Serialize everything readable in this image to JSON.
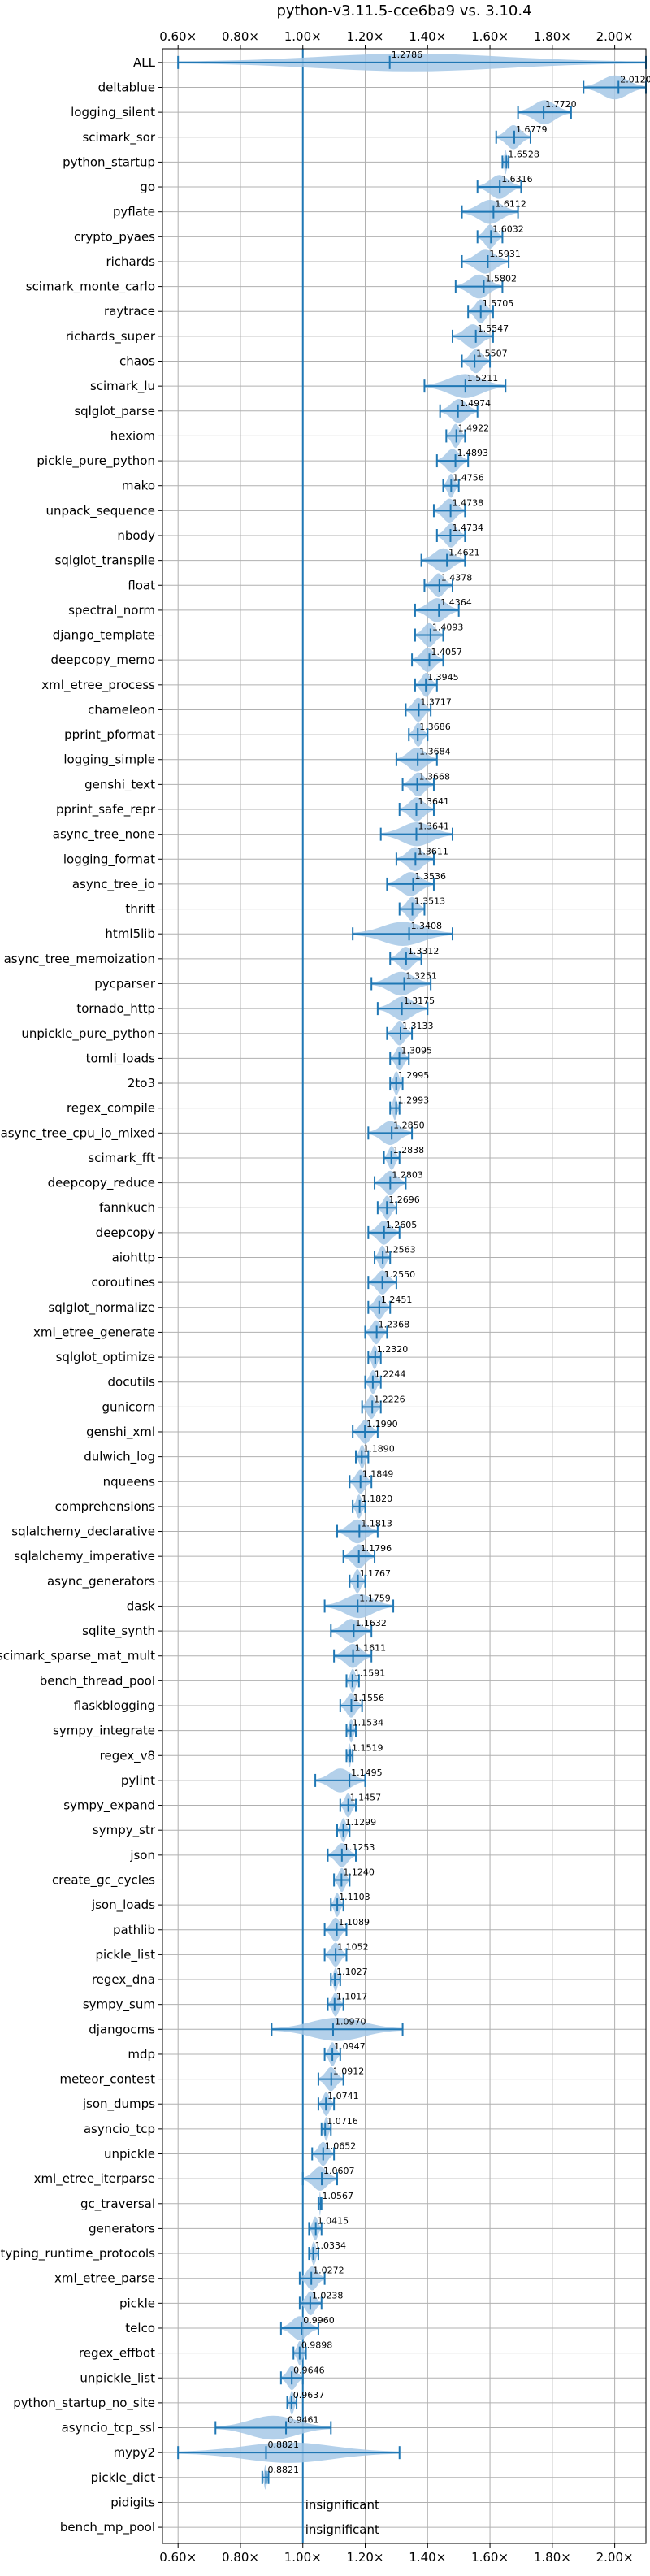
{
  "chart_data": {
    "type": "violin",
    "title": "python-v3.11.5-cce6ba9 vs. 3.10.4",
    "xlabel": "",
    "ylabel": "",
    "xlim": [
      0.55,
      2.1
    ],
    "xticks": [
      0.6,
      0.8,
      1.0,
      1.2,
      1.4,
      1.6,
      1.8,
      2.0
    ],
    "xtick_labels": [
      "0.60×",
      "0.80×",
      "1.00×",
      "1.20×",
      "1.40×",
      "1.60×",
      "1.80×",
      "2.00×"
    ],
    "reference_line": 1.0,
    "grid": true,
    "color": "#1f77b4",
    "fill_color": "#a6c8e6",
    "benchmarks": [
      {
        "name": "ALL",
        "value": 1.2786,
        "label": "1.2786",
        "min": 0.6,
        "max": 2.12
      },
      {
        "name": "deltablue",
        "value": 2.012,
        "label": "2.0120",
        "min": 1.9,
        "max": 2.1
      },
      {
        "name": "logging_silent",
        "value": 1.772,
        "label": "1.7720",
        "min": 1.69,
        "max": 1.86
      },
      {
        "name": "scimark_sor",
        "value": 1.6779,
        "label": "1.6779",
        "min": 1.62,
        "max": 1.73
      },
      {
        "name": "python_startup",
        "value": 1.6528,
        "label": "1.6528",
        "min": 1.64,
        "max": 1.66
      },
      {
        "name": "go",
        "value": 1.6316,
        "label": "1.6316",
        "min": 1.56,
        "max": 1.7
      },
      {
        "name": "pyflate",
        "value": 1.6112,
        "label": "1.6112",
        "min": 1.51,
        "max": 1.69
      },
      {
        "name": "crypto_pyaes",
        "value": 1.6032,
        "label": "1.6032",
        "min": 1.56,
        "max": 1.64
      },
      {
        "name": "richards",
        "value": 1.5931,
        "label": "1.5931",
        "min": 1.51,
        "max": 1.66
      },
      {
        "name": "scimark_monte_carlo",
        "value": 1.5802,
        "label": "1.5802",
        "min": 1.49,
        "max": 1.64
      },
      {
        "name": "raytrace",
        "value": 1.5705,
        "label": "1.5705",
        "min": 1.53,
        "max": 1.61
      },
      {
        "name": "richards_super",
        "value": 1.5547,
        "label": "1.5547",
        "min": 1.48,
        "max": 1.61
      },
      {
        "name": "chaos",
        "value": 1.5507,
        "label": "1.5507",
        "min": 1.51,
        "max": 1.6
      },
      {
        "name": "scimark_lu",
        "value": 1.5211,
        "label": "1.5211",
        "min": 1.39,
        "max": 1.65
      },
      {
        "name": "sqlglot_parse",
        "value": 1.4974,
        "label": "1.4974",
        "min": 1.44,
        "max": 1.56
      },
      {
        "name": "hexiom",
        "value": 1.4922,
        "label": "1.4922",
        "min": 1.46,
        "max": 1.52
      },
      {
        "name": "pickle_pure_python",
        "value": 1.4893,
        "label": "1.4893",
        "min": 1.43,
        "max": 1.53
      },
      {
        "name": "mako",
        "value": 1.4756,
        "label": "1.4756",
        "min": 1.45,
        "max": 1.5
      },
      {
        "name": "unpack_sequence",
        "value": 1.4738,
        "label": "1.4738",
        "min": 1.42,
        "max": 1.52
      },
      {
        "name": "nbody",
        "value": 1.4734,
        "label": "1.4734",
        "min": 1.43,
        "max": 1.52
      },
      {
        "name": "sqlglot_transpile",
        "value": 1.4621,
        "label": "1.4621",
        "min": 1.38,
        "max": 1.52
      },
      {
        "name": "float",
        "value": 1.4378,
        "label": "1.4378",
        "min": 1.39,
        "max": 1.48
      },
      {
        "name": "spectral_norm",
        "value": 1.4364,
        "label": "1.4364",
        "min": 1.36,
        "max": 1.5
      },
      {
        "name": "django_template",
        "value": 1.4093,
        "label": "1.4093",
        "min": 1.36,
        "max": 1.45
      },
      {
        "name": "deepcopy_memo",
        "value": 1.4057,
        "label": "1.4057",
        "min": 1.35,
        "max": 1.45
      },
      {
        "name": "xml_etree_process",
        "value": 1.3945,
        "label": "1.3945",
        "min": 1.36,
        "max": 1.43
      },
      {
        "name": "chameleon",
        "value": 1.3717,
        "label": "1.3717",
        "min": 1.33,
        "max": 1.41
      },
      {
        "name": "pprint_pformat",
        "value": 1.3686,
        "label": "1.3686",
        "min": 1.34,
        "max": 1.4
      },
      {
        "name": "logging_simple",
        "value": 1.3684,
        "label": "1.3684",
        "min": 1.3,
        "max": 1.43
      },
      {
        "name": "genshi_text",
        "value": 1.3668,
        "label": "1.3668",
        "min": 1.32,
        "max": 1.42
      },
      {
        "name": "pprint_safe_repr",
        "value": 1.3641,
        "label": "1.3641",
        "min": 1.31,
        "max": 1.42
      },
      {
        "name": "async_tree_none",
        "value": 1.3641,
        "label": "1.3641",
        "min": 1.25,
        "max": 1.48
      },
      {
        "name": "logging_format",
        "value": 1.3611,
        "label": "1.3611",
        "min": 1.3,
        "max": 1.42
      },
      {
        "name": "async_tree_io",
        "value": 1.3536,
        "label": "1.3536",
        "min": 1.27,
        "max": 1.42
      },
      {
        "name": "thrift",
        "value": 1.3513,
        "label": "1.3513",
        "min": 1.31,
        "max": 1.39
      },
      {
        "name": "html5lib",
        "value": 1.3408,
        "label": "1.3408",
        "min": 1.16,
        "max": 1.48
      },
      {
        "name": "async_tree_memoization",
        "value": 1.3312,
        "label": "1.3312",
        "min": 1.28,
        "max": 1.38
      },
      {
        "name": "pycparser",
        "value": 1.3251,
        "label": "1.3251",
        "min": 1.22,
        "max": 1.41
      },
      {
        "name": "tornado_http",
        "value": 1.3175,
        "label": "1.3175",
        "min": 1.24,
        "max": 1.4
      },
      {
        "name": "unpickle_pure_python",
        "value": 1.3133,
        "label": "1.3133",
        "min": 1.27,
        "max": 1.35
      },
      {
        "name": "tomli_loads",
        "value": 1.3095,
        "label": "1.3095",
        "min": 1.28,
        "max": 1.34
      },
      {
        "name": "2to3",
        "value": 1.2995,
        "label": "1.2995",
        "min": 1.28,
        "max": 1.32
      },
      {
        "name": "regex_compile",
        "value": 1.2993,
        "label": "1.2993",
        "min": 1.28,
        "max": 1.31
      },
      {
        "name": "async_tree_cpu_io_mixed",
        "value": 1.285,
        "label": "1.2850",
        "min": 1.21,
        "max": 1.35
      },
      {
        "name": "scimark_fft",
        "value": 1.2838,
        "label": "1.2838",
        "min": 1.26,
        "max": 1.31
      },
      {
        "name": "deepcopy_reduce",
        "value": 1.2803,
        "label": "1.2803",
        "min": 1.23,
        "max": 1.33
      },
      {
        "name": "fannkuch",
        "value": 1.2696,
        "label": "1.2696",
        "min": 1.24,
        "max": 1.3
      },
      {
        "name": "deepcopy",
        "value": 1.2605,
        "label": "1.2605",
        "min": 1.21,
        "max": 1.31
      },
      {
        "name": "aiohttp",
        "value": 1.2563,
        "label": "1.2563",
        "min": 1.23,
        "max": 1.28
      },
      {
        "name": "coroutines",
        "value": 1.255,
        "label": "1.2550",
        "min": 1.21,
        "max": 1.3
      },
      {
        "name": "sqlglot_normalize",
        "value": 1.2451,
        "label": "1.2451",
        "min": 1.21,
        "max": 1.28
      },
      {
        "name": "xml_etree_generate",
        "value": 1.2368,
        "label": "1.2368",
        "min": 1.2,
        "max": 1.27
      },
      {
        "name": "sqlglot_optimize",
        "value": 1.232,
        "label": "1.2320",
        "min": 1.21,
        "max": 1.25
      },
      {
        "name": "docutils",
        "value": 1.2244,
        "label": "1.2244",
        "min": 1.2,
        "max": 1.25
      },
      {
        "name": "gunicorn",
        "value": 1.2226,
        "label": "1.2226",
        "min": 1.19,
        "max": 1.25
      },
      {
        "name": "genshi_xml",
        "value": 1.199,
        "label": "1.1990",
        "min": 1.16,
        "max": 1.24
      },
      {
        "name": "dulwich_log",
        "value": 1.189,
        "label": "1.1890",
        "min": 1.17,
        "max": 1.21
      },
      {
        "name": "nqueens",
        "value": 1.1849,
        "label": "1.1849",
        "min": 1.15,
        "max": 1.22
      },
      {
        "name": "comprehensions",
        "value": 1.182,
        "label": "1.1820",
        "min": 1.16,
        "max": 1.2
      },
      {
        "name": "sqlalchemy_declarative",
        "value": 1.1813,
        "label": "1.1813",
        "min": 1.11,
        "max": 1.24
      },
      {
        "name": "sqlalchemy_imperative",
        "value": 1.1796,
        "label": "1.1796",
        "min": 1.13,
        "max": 1.23
      },
      {
        "name": "async_generators",
        "value": 1.1767,
        "label": "1.1767",
        "min": 1.15,
        "max": 1.2
      },
      {
        "name": "dask",
        "value": 1.1759,
        "label": "1.1759",
        "min": 1.07,
        "max": 1.29
      },
      {
        "name": "sqlite_synth",
        "value": 1.1632,
        "label": "1.1632",
        "min": 1.09,
        "max": 1.22
      },
      {
        "name": "scimark_sparse_mat_mult",
        "value": 1.1611,
        "label": "1.1611",
        "min": 1.1,
        "max": 1.22
      },
      {
        "name": "bench_thread_pool",
        "value": 1.1591,
        "label": "1.1591",
        "min": 1.14,
        "max": 1.18
      },
      {
        "name": "flaskblogging",
        "value": 1.1556,
        "label": "1.1556",
        "min": 1.12,
        "max": 1.19
      },
      {
        "name": "sympy_integrate",
        "value": 1.1534,
        "label": "1.1534",
        "min": 1.14,
        "max": 1.17
      },
      {
        "name": "regex_v8",
        "value": 1.1519,
        "label": "1.1519",
        "min": 1.14,
        "max": 1.16
      },
      {
        "name": "pylint",
        "value": 1.1495,
        "label": "1.1495",
        "min": 1.04,
        "max": 1.2
      },
      {
        "name": "sympy_expand",
        "value": 1.1457,
        "label": "1.1457",
        "min": 1.12,
        "max": 1.17
      },
      {
        "name": "sympy_str",
        "value": 1.1299,
        "label": "1.1299",
        "min": 1.11,
        "max": 1.15
      },
      {
        "name": "json",
        "value": 1.1253,
        "label": "1.1253",
        "min": 1.08,
        "max": 1.17
      },
      {
        "name": "create_gc_cycles",
        "value": 1.124,
        "label": "1.1240",
        "min": 1.1,
        "max": 1.15
      },
      {
        "name": "json_loads",
        "value": 1.1103,
        "label": "1.1103",
        "min": 1.09,
        "max": 1.13
      },
      {
        "name": "pathlib",
        "value": 1.1089,
        "label": "1.1089",
        "min": 1.07,
        "max": 1.14
      },
      {
        "name": "pickle_list",
        "value": 1.1052,
        "label": "1.1052",
        "min": 1.07,
        "max": 1.14
      },
      {
        "name": "regex_dna",
        "value": 1.1027,
        "label": "1.1027",
        "min": 1.09,
        "max": 1.12
      },
      {
        "name": "sympy_sum",
        "value": 1.1017,
        "label": "1.1017",
        "min": 1.08,
        "max": 1.13
      },
      {
        "name": "djangocms",
        "value": 1.097,
        "label": "1.0970",
        "min": 0.9,
        "max": 1.32
      },
      {
        "name": "mdp",
        "value": 1.0947,
        "label": "1.0947",
        "min": 1.07,
        "max": 1.12
      },
      {
        "name": "meteor_contest",
        "value": 1.0912,
        "label": "1.0912",
        "min": 1.05,
        "max": 1.13
      },
      {
        "name": "json_dumps",
        "value": 1.0741,
        "label": "1.0741",
        "min": 1.05,
        "max": 1.1
      },
      {
        "name": "asyncio_tcp",
        "value": 1.0716,
        "label": "1.0716",
        "min": 1.06,
        "max": 1.09
      },
      {
        "name": "unpickle",
        "value": 1.0652,
        "label": "1.0652",
        "min": 1.03,
        "max": 1.1
      },
      {
        "name": "xml_etree_iterparse",
        "value": 1.0607,
        "label": "1.0607",
        "min": 1.0,
        "max": 1.11
      },
      {
        "name": "gc_traversal",
        "value": 1.0567,
        "label": "1.0567",
        "min": 1.05,
        "max": 1.06
      },
      {
        "name": "generators",
        "value": 1.0415,
        "label": "1.0415",
        "min": 1.02,
        "max": 1.06
      },
      {
        "name": "typing_runtime_protocols",
        "value": 1.0334,
        "label": "1.0334",
        "min": 1.02,
        "max": 1.05
      },
      {
        "name": "xml_etree_parse",
        "value": 1.0272,
        "label": "1.0272",
        "min": 0.99,
        "max": 1.07
      },
      {
        "name": "pickle",
        "value": 1.0238,
        "label": "1.0238",
        "min": 0.99,
        "max": 1.06
      },
      {
        "name": "telco",
        "value": 0.996,
        "label": "0.9960",
        "min": 0.93,
        "max": 1.05
      },
      {
        "name": "regex_effbot",
        "value": 0.9898,
        "label": "0.9898",
        "min": 0.97,
        "max": 1.01
      },
      {
        "name": "unpickle_list",
        "value": 0.9646,
        "label": "0.9646",
        "min": 0.93,
        "max": 1.0
      },
      {
        "name": "python_startup_no_site",
        "value": 0.9637,
        "label": "0.9637",
        "min": 0.95,
        "max": 0.98
      },
      {
        "name": "asyncio_tcp_ssl",
        "value": 0.9461,
        "label": "0.9461",
        "min": 0.72,
        "max": 1.09
      },
      {
        "name": "mypy2",
        "value": 0.8821,
        "label": "0.8821",
        "min": 0.6,
        "max": 1.31
      },
      {
        "name": "pickle_dict",
        "value": 0.8821,
        "label": "0.8821",
        "min": 0.87,
        "max": 0.89
      },
      {
        "name": "pidigits",
        "value": null,
        "label": "insignificant"
      },
      {
        "name": "bench_mp_pool",
        "value": null,
        "label": "insignificant"
      }
    ]
  }
}
